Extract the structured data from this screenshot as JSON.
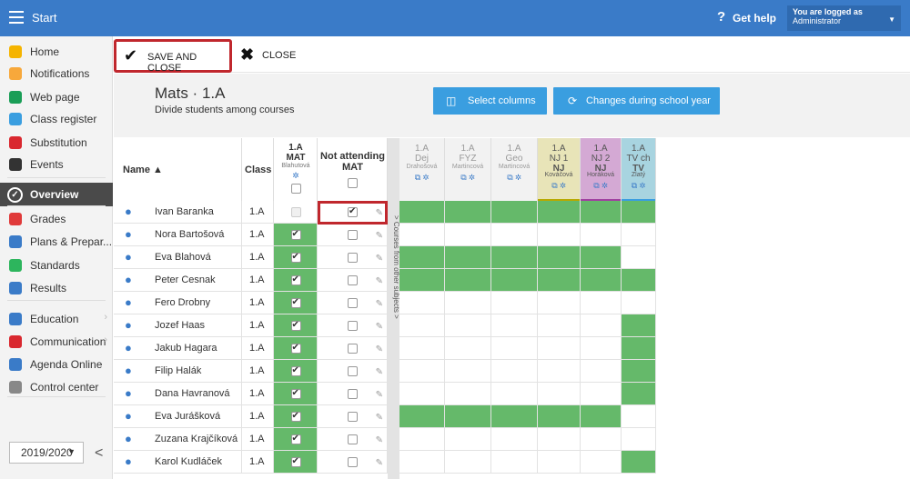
{
  "topbar": {
    "title": "Start",
    "help_icon": "?",
    "help_label": "Get help",
    "user_line1": "You are logged as",
    "user_line2": "Administrator"
  },
  "sidebar": {
    "items": [
      {
        "label": "Home",
        "icon": "star-icon",
        "color": "#f5b400"
      },
      {
        "label": "Notifications",
        "icon": "envelope-icon",
        "color": "#f7a83b"
      },
      {
        "label": "Web page",
        "icon": "home-icon",
        "color": "#1a9e57"
      },
      {
        "label": "Class register",
        "icon": "book-icon",
        "color": "#3a9ee0"
      },
      {
        "label": "Substitution",
        "icon": "person-swap-icon",
        "color": "#d9282f"
      },
      {
        "label": "Events",
        "icon": "calendar-icon",
        "color": "#333333"
      },
      {
        "label": "Overview",
        "icon": "check-circle-icon",
        "color": "#ffffff"
      },
      {
        "label": "Grades",
        "icon": "grades-icon",
        "color": "#e03a3a"
      },
      {
        "label": "Plans & Prepar...",
        "icon": "briefcase-icon",
        "color": "#3a7bc8"
      },
      {
        "label": "Standards",
        "icon": "shield-check-icon",
        "color": "#2db55d"
      },
      {
        "label": "Results",
        "icon": "bar-chart-icon",
        "color": "#3a7bc8"
      },
      {
        "label": "Education",
        "icon": "school-icon",
        "color": "#3a7bc8"
      },
      {
        "label": "Communication",
        "icon": "chat-icon",
        "color": "#d9282f"
      },
      {
        "label": "Agenda Online",
        "icon": "pen-icon",
        "color": "#3a7bc8"
      },
      {
        "label": "Control center",
        "icon": "gear-icon",
        "color": "#888888"
      }
    ],
    "year": "2019/2020",
    "year_caret": "▼",
    "collapse": "<"
  },
  "toolbar": {
    "save_label": "SAVE AND CLOSE",
    "save_icon": "✔",
    "close_label": "CLOSE",
    "close_icon": "✖"
  },
  "header": {
    "title": "Mats · 1.A",
    "subtitle": "Divide students among courses",
    "select_columns": "Select columns",
    "select_columns_icon": "◫",
    "changes": "Changes during school year",
    "changes_icon": "⟳"
  },
  "grid": {
    "col_name": "Name ▲",
    "col_class": "Class",
    "col_mat": {
      "l1": "1.A",
      "l2": "MAT",
      "l3": "Blahutová"
    },
    "col_not_attending": {
      "l1": "Not attending",
      "l2": "MAT"
    },
    "side_label": "> Courses from other subjects >",
    "other_cols": [
      {
        "l1": "1.A",
        "l2": "Dej",
        "l3": "Drahošová",
        "bg": "#f2f2f2",
        "fg": "#999999"
      },
      {
        "l1": "1.A",
        "l2": "FYZ",
        "l3": "Martincová",
        "bg": "#f2f2f2",
        "fg": "#999999"
      },
      {
        "l1": "1.A",
        "l2": "Geo",
        "l3": "Martincová",
        "bg": "#f2f2f2",
        "fg": "#999999"
      },
      {
        "l1": "1.A",
        "l2": "NJ 1",
        "l3": "NJ",
        "l4": "Kováčová",
        "bg": "#e8e4b8",
        "fg": "#555555"
      },
      {
        "l1": "1.A",
        "l2": "NJ 2",
        "l3": "NJ",
        "l4": "Horáková",
        "bg": "#d4a9d4",
        "fg": "#555555"
      },
      {
        "l1": "1.A",
        "l2": "TV ch",
        "l3": "TV",
        "l4": "Zlatý",
        "bg": "#a8d4e0",
        "fg": "#555555"
      }
    ],
    "rows": [
      {
        "name": "Ivan Baranka",
        "class": "1.A",
        "mat": "disabled",
        "not": true,
        "other": [
          1,
          1,
          1,
          1,
          1,
          1
        ]
      },
      {
        "name": "Nora Bartošová",
        "class": "1.A",
        "mat": "on",
        "not": false,
        "other": [
          0,
          0,
          0,
          0,
          0,
          0
        ]
      },
      {
        "name": "Eva Blahová",
        "class": "1.A",
        "mat": "on",
        "not": false,
        "other": [
          1,
          1,
          1,
          1,
          1,
          0
        ]
      },
      {
        "name": "Peter Cesnak",
        "class": "1.A",
        "mat": "on",
        "not": false,
        "other": [
          1,
          1,
          1,
          1,
          1,
          1
        ]
      },
      {
        "name": "Fero Drobny",
        "class": "1.A",
        "mat": "on",
        "not": false,
        "other": [
          0,
          0,
          0,
          0,
          0,
          0
        ]
      },
      {
        "name": "Jozef Haas",
        "class": "1.A",
        "mat": "on",
        "not": false,
        "other": [
          0,
          0,
          0,
          0,
          0,
          1
        ]
      },
      {
        "name": "Jakub Hagara",
        "class": "1.A",
        "mat": "on",
        "not": false,
        "other": [
          0,
          0,
          0,
          0,
          0,
          1
        ]
      },
      {
        "name": "Filip Halák",
        "class": "1.A",
        "mat": "on",
        "not": false,
        "other": [
          0,
          0,
          0,
          0,
          0,
          1
        ]
      },
      {
        "name": "Dana Havranová",
        "class": "1.A",
        "mat": "on",
        "not": false,
        "other": [
          0,
          0,
          0,
          0,
          0,
          1
        ]
      },
      {
        "name": "Eva Jurášková",
        "class": "1.A",
        "mat": "on",
        "not": false,
        "other": [
          1,
          1,
          1,
          1,
          1,
          0
        ]
      },
      {
        "name": "Zuzana Krajčíková",
        "class": "1.A",
        "mat": "on",
        "not": false,
        "other": [
          0,
          0,
          0,
          0,
          0,
          0
        ]
      },
      {
        "name": "Karol Kudláček",
        "class": "1.A",
        "mat": "on",
        "not": false,
        "other": [
          0,
          0,
          0,
          0,
          0,
          1
        ]
      }
    ]
  }
}
